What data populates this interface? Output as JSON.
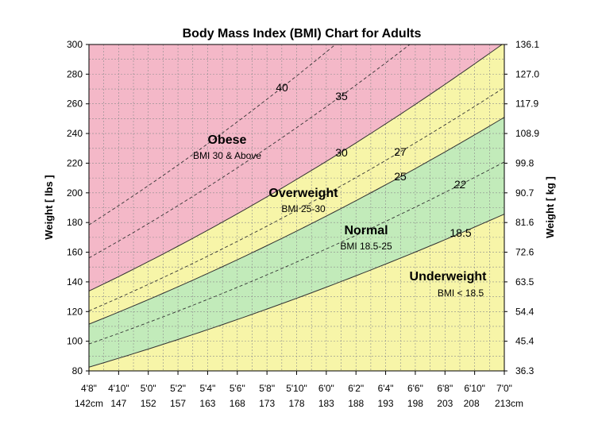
{
  "chart_data": {
    "type": "area",
    "title": "Body Mass Index (BMI) Chart for Adults",
    "ylabel": "Weight [ lbs ]",
    "ylabel_right": "Weight [ kg ]",
    "ylim": [
      80,
      300
    ],
    "y_ticks": [
      80,
      100,
      120,
      140,
      160,
      180,
      200,
      220,
      240,
      260,
      280,
      300
    ],
    "y_right_ticks": [
      "36.3",
      "45.4",
      "54.4",
      "63.5",
      "72.6",
      "81.6",
      "90.7",
      "99.8",
      "108.9",
      "117.9",
      "127.0",
      "136.1"
    ],
    "x_ticks_feet": [
      "4'8\"",
      "4'10\"",
      "5'0\"",
      "5'2\"",
      "5'4\"",
      "5'6\"",
      "5'8\"",
      "5'10\"",
      "6'0\"",
      "6'2\"",
      "6'4\"",
      "6'6\"",
      "6'8\"",
      "6'10\"",
      "7'0\""
    ],
    "x_ticks_cm": [
      "142cm",
      "147",
      "152",
      "157",
      "163",
      "168",
      "173",
      "178",
      "183",
      "188",
      "193",
      "198",
      "203",
      "208",
      "213cm"
    ],
    "x_inches": [
      56,
      58,
      60,
      62,
      64,
      66,
      68,
      70,
      72,
      74,
      76,
      78,
      80,
      82,
      84
    ],
    "grid": true,
    "regions": [
      {
        "name": "Obese",
        "subtitle": "BMI 30 & Above",
        "bmi_min": 30,
        "color": "#f4b8c8"
      },
      {
        "name": "Overweight",
        "subtitle": "BMI 25-30",
        "bmi_min": 25,
        "bmi_max": 30,
        "color": "#f7f5a8"
      },
      {
        "name": "Normal",
        "subtitle": "BMI 18.5-25",
        "bmi_min": 18.5,
        "bmi_max": 25,
        "color": "#c2ebba"
      },
      {
        "name": "Underweight",
        "subtitle": "BMI < 18.5",
        "bmi_max": 18.5,
        "color": "#f7f5a8"
      }
    ],
    "series": [
      {
        "bmi": 18.5,
        "label": "18.5",
        "style": "solid"
      },
      {
        "bmi": 22,
        "label": "22",
        "style": "dashed"
      },
      {
        "bmi": 25,
        "label": "25",
        "style": "solid"
      },
      {
        "bmi": 27,
        "label": "27",
        "style": "dashed"
      },
      {
        "bmi": 30,
        "label": "30",
        "style": "solid"
      },
      {
        "bmi": 35,
        "label": "35",
        "style": "dashed"
      },
      {
        "bmi": 40,
        "label": "40",
        "style": "dashed"
      }
    ]
  }
}
